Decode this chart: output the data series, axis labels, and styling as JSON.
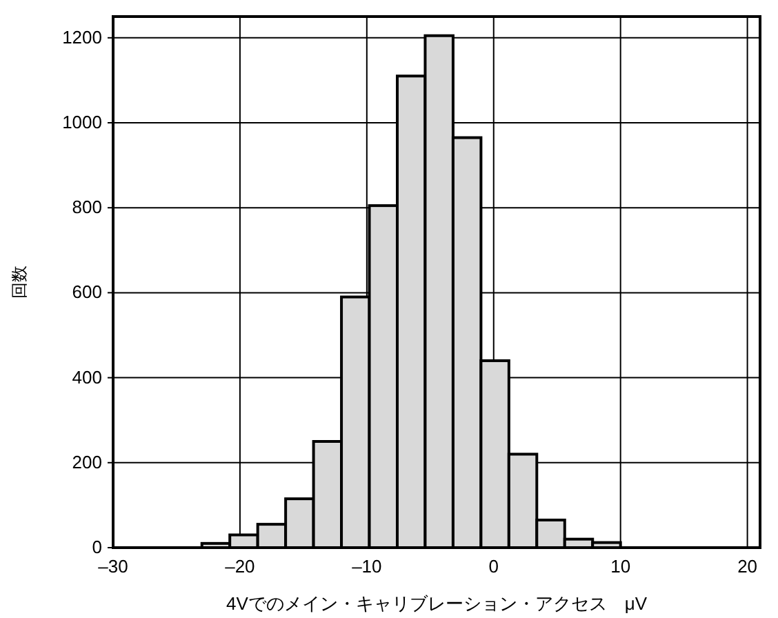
{
  "chart_data": {
    "type": "histogram",
    "xlabel": "4Vでのメイン・キャリブレーション・アクセス　μV",
    "ylabel": "回数",
    "bins": [
      -23,
      -20.8,
      -18.6,
      -16.4,
      -14.2,
      -12,
      -9.8,
      -7.6,
      -5.4,
      -3.2,
      -1.0,
      1.2,
      3.4,
      5.6,
      7.8,
      10.0
    ],
    "values": [
      10,
      30,
      55,
      115,
      250,
      590,
      805,
      1110,
      1205,
      965,
      440,
      220,
      65,
      20,
      12
    ],
    "color": "#d9d9d9",
    "xlim": [
      -30,
      21
    ],
    "ylim": [
      0,
      1250
    ],
    "xticks": [
      {
        "value": -30,
        "label": "–30"
      },
      {
        "value": -20,
        "label": "–20"
      },
      {
        "value": -10,
        "label": "–10"
      },
      0,
      10,
      20
    ],
    "yticks": [
      0,
      200,
      400,
      600,
      800,
      1000,
      1200
    ],
    "grid": true
  }
}
